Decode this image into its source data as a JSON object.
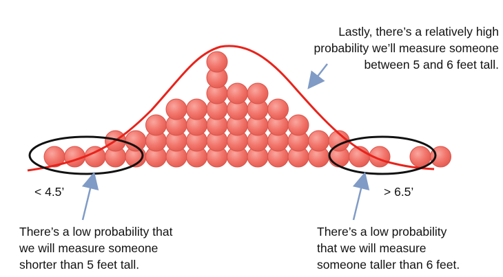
{
  "annotations": {
    "top_right": [
      "Lastly, there’s a relatively high",
      "probability we’ll measure someone",
      "between 5 and 6 feet tall."
    ],
    "bottom_left": [
      "There’s a low probability that",
      "we will measure someone",
      "shorter than 5 feet tall."
    ],
    "bottom_right": [
      "There’s a low probability",
      "that we will measure",
      "someone taller than 6 feet."
    ]
  },
  "axis_labels": {
    "left": "< 4.5’",
    "right": "> 6.5’"
  },
  "column_counts": [
    1,
    1,
    1,
    2,
    2,
    3,
    4,
    4,
    7,
    5,
    5,
    4,
    3,
    2,
    2,
    1,
    1,
    0,
    1,
    1
  ],
  "colors": {
    "ball_fill": "#f2756b",
    "ball_stroke": "#d9534a",
    "curve": "#e8231b",
    "ellipse": "#111111",
    "arrow": "#7f9bc6"
  }
}
